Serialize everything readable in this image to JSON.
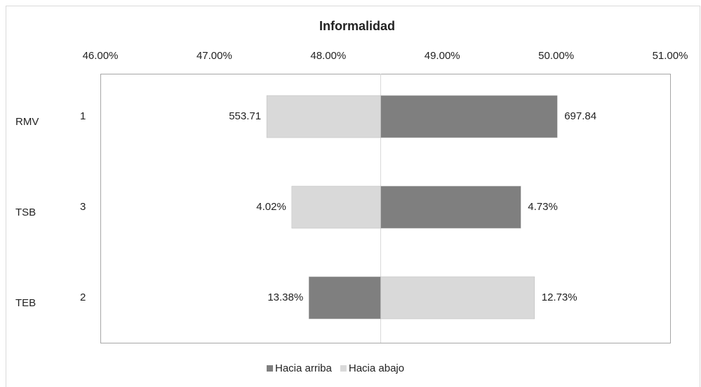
{
  "chart_data": {
    "type": "tornado",
    "title": "Informalidad",
    "categories": [
      "RMV",
      "TSB",
      "TEB"
    ],
    "category_sublabels": [
      "1",
      "3",
      "2"
    ],
    "base": 48.46,
    "series": [
      {
        "name": "Hacia arriba",
        "color": "#7f7f7f",
        "values": [
          50.01,
          49.69,
          47.83
        ],
        "bar_labels": [
          "697.84",
          "4.73%",
          "13.38%"
        ]
      },
      {
        "name": "Hacia abajo",
        "color": "#d9d9d9",
        "values": [
          47.46,
          47.68,
          49.81
        ],
        "bar_labels": [
          "553.71",
          "4.02%",
          "12.73%"
        ]
      }
    ],
    "xlim": [
      46,
      51
    ],
    "xticks": [
      {
        "value": 46,
        "label": "46.00%"
      },
      {
        "value": 47,
        "label": "47.00%"
      },
      {
        "value": 48,
        "label": "48.00%"
      },
      {
        "value": 49,
        "label": "49.00%"
      },
      {
        "value": 50,
        "label": "50.00%"
      },
      {
        "value": 51,
        "label": "51.00%"
      }
    ],
    "legend": "bottom"
  }
}
